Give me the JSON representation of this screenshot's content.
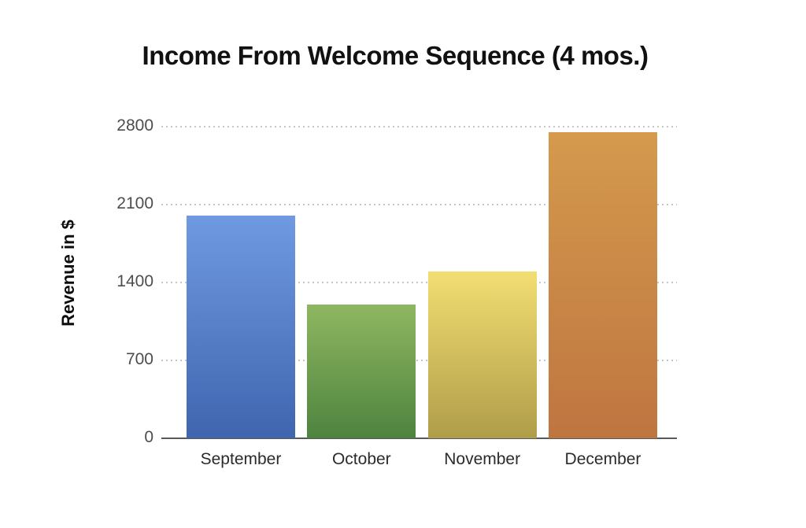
{
  "chart_data": {
    "type": "bar",
    "title": "Income From Welcome Sequence (4 mos.)",
    "xlabel": "",
    "ylabel": "Revenue in $",
    "categories": [
      "September",
      "October",
      "November",
      "December"
    ],
    "values": [
      2000,
      1200,
      1500,
      2750
    ],
    "ylim": [
      0,
      2800
    ],
    "yticks": [
      0,
      700,
      1400,
      2100,
      2800
    ],
    "grid": "horizontal-dotted",
    "legend": "none",
    "bar_gradients": [
      {
        "top": "#6f9ae2",
        "bottom": "#3f65af"
      },
      {
        "top": "#8fb761",
        "bottom": "#4e833f"
      },
      {
        "top": "#f2de72",
        "bottom": "#b09d49"
      },
      {
        "top": "#d49a4d",
        "bottom": "#bf7540"
      }
    ],
    "colors": {
      "axis_line": "#58595b",
      "gridline": "#c6c6c6",
      "y_tick_label": "#4d4d4d",
      "x_tick_label": "#2b2b2b",
      "title": "#111111"
    }
  }
}
